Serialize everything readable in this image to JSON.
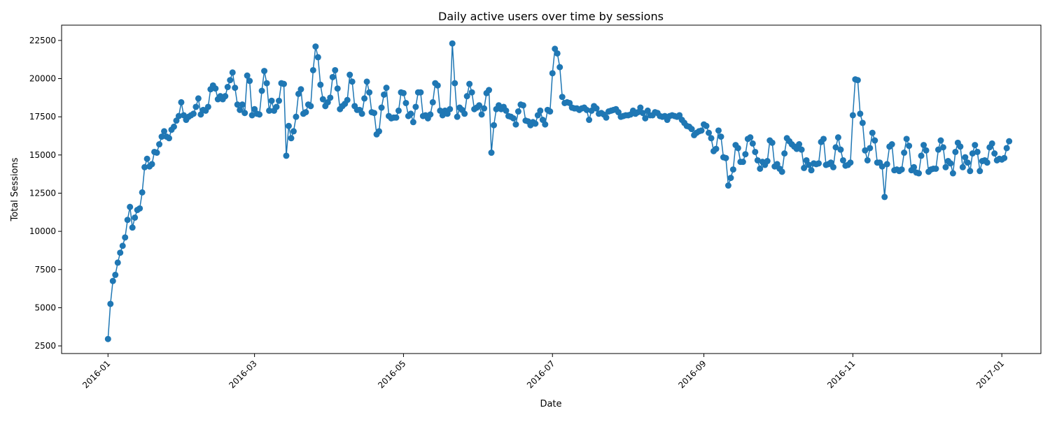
{
  "chart_data": {
    "type": "line",
    "title": "Daily active users over time by sessions",
    "xlabel": "Date",
    "ylabel": "Total Sessions",
    "x_ticks": [
      "2016-01",
      "2016-03",
      "2016-05",
      "2016-07",
      "2016-09",
      "2016-11",
      "2017-01"
    ],
    "y_ticks": [
      2500,
      5000,
      7500,
      10000,
      12500,
      15000,
      17500,
      20000,
      22500
    ],
    "xlim": [
      "2015-12-13",
      "2017-01-17"
    ],
    "ylim": [
      2000,
      23500
    ],
    "grid": false,
    "legend": "none",
    "color": "#1f77b4",
    "marker": "circle",
    "series": [
      {
        "start_date": "2016-01-01",
        "values": [
          2950,
          5250,
          6750,
          7150,
          7950,
          8600,
          9050,
          9600,
          10750,
          11600,
          10250,
          10900,
          11400,
          11500,
          12550,
          14200,
          14750,
          14250,
          14400,
          15200,
          15150,
          15700,
          16200,
          16550,
          16200,
          16100,
          16650,
          16850,
          17250,
          17550,
          18450,
          17600,
          17300,
          17500,
          17600,
          17700,
          18150,
          18700,
          17650,
          17950,
          17900,
          18150,
          19300,
          19550,
          19350,
          18650,
          18850,
          18650,
          18850,
          19450,
          19900,
          20400,
          19400,
          18300,
          17950,
          18300,
          17750,
          20200,
          19850,
          17600,
          18000,
          17700,
          17650,
          19200,
          20500,
          19700,
          17900,
          18550,
          17900,
          18150,
          18550,
          19700,
          19650,
          14950,
          16900,
          16100,
          16550,
          17500,
          19000,
          19300,
          17700,
          17800,
          18300,
          18200,
          20550,
          22100,
          21400,
          19600,
          18650,
          18200,
          18450,
          18750,
          20100,
          20550,
          19350,
          18000,
          18200,
          18350,
          18600,
          20250,
          19800,
          18200,
          17950,
          17950,
          17700,
          18700,
          19800,
          19100,
          17800,
          17750,
          16350,
          16550,
          18100,
          18950,
          19400,
          17550,
          17400,
          17450,
          17450,
          17900,
          19100,
          19050,
          18400,
          17550,
          17700,
          17150,
          18150,
          19100,
          19100,
          17550,
          17600,
          17400,
          17650,
          18450,
          19700,
          19550,
          17900,
          17600,
          17900,
          17700,
          18000,
          22300,
          19700,
          17500,
          18100,
          17950,
          17700,
          18850,
          19650,
          19100,
          18000,
          18100,
          18250,
          17650,
          18050,
          19050,
          19250,
          15150,
          16950,
          18000,
          18250,
          18000,
          18150,
          17900,
          17550,
          17500,
          17400,
          17000,
          17850,
          18300,
          18250,
          17250,
          17200,
          16950,
          17150,
          17050,
          17600,
          17900,
          17300,
          17000,
          17950,
          17850,
          20350,
          21950,
          21650,
          20750,
          18800,
          18400,
          18450,
          18400,
          18100,
          18050,
          18050,
          17950,
          18050,
          18100,
          17950,
          17300,
          17900,
          18200,
          18050,
          17700,
          17750,
          17650,
          17450,
          17850,
          17900,
          17950,
          18000,
          17800,
          17500,
          17550,
          17600,
          17600,
          17650,
          17900,
          17700,
          17800,
          18100,
          17750,
          17400,
          17900,
          17600,
          17600,
          17800,
          17750,
          17550,
          17500,
          17550,
          17300,
          17550,
          17600,
          17550,
          17500,
          17600,
          17300,
          17100,
          16900,
          16850,
          16700,
          16300,
          16450,
          16550,
          16600,
          17000,
          16900,
          16450,
          16100,
          15250,
          15400,
          16600,
          16200,
          14850,
          14800,
          13000,
          13500,
          14050,
          15650,
          15450,
          14550,
          14550,
          15050,
          16050,
          16150,
          15750,
          15200,
          14650,
          14100,
          14550,
          14350,
          14600,
          15950,
          15800,
          14250,
          14400,
          14100,
          13900,
          15100,
          16100,
          15900,
          15700,
          15550,
          15400,
          15700,
          15350,
          14150,
          14650,
          14350,
          14000,
          14450,
          14400,
          14450,
          15850,
          16050,
          14350,
          14400,
          14500,
          14200,
          15500,
          16150,
          15350,
          14650,
          14300,
          14350,
          14500,
          17600,
          19950,
          19900,
          17700,
          17100,
          15300,
          14650,
          15450,
          16450,
          15950,
          14500,
          14500,
          14250,
          12250,
          14400,
          15550,
          15700,
          14000,
          14050,
          13950,
          14050,
          15150,
          16050,
          15600,
          14000,
          14200,
          13850,
          13800,
          14950,
          15650,
          15300,
          13900,
          14050,
          14100,
          14100,
          15350,
          15950,
          15500,
          14200,
          14600,
          14450,
          13800,
          15200,
          15800,
          15550,
          14200,
          14850,
          14500,
          13950,
          15100,
          15650,
          15200,
          13950,
          14600,
          14650,
          14500,
          15500,
          15750,
          15100,
          14650,
          14750,
          14700,
          14800,
          15450,
          15900
        ]
      }
    ]
  }
}
